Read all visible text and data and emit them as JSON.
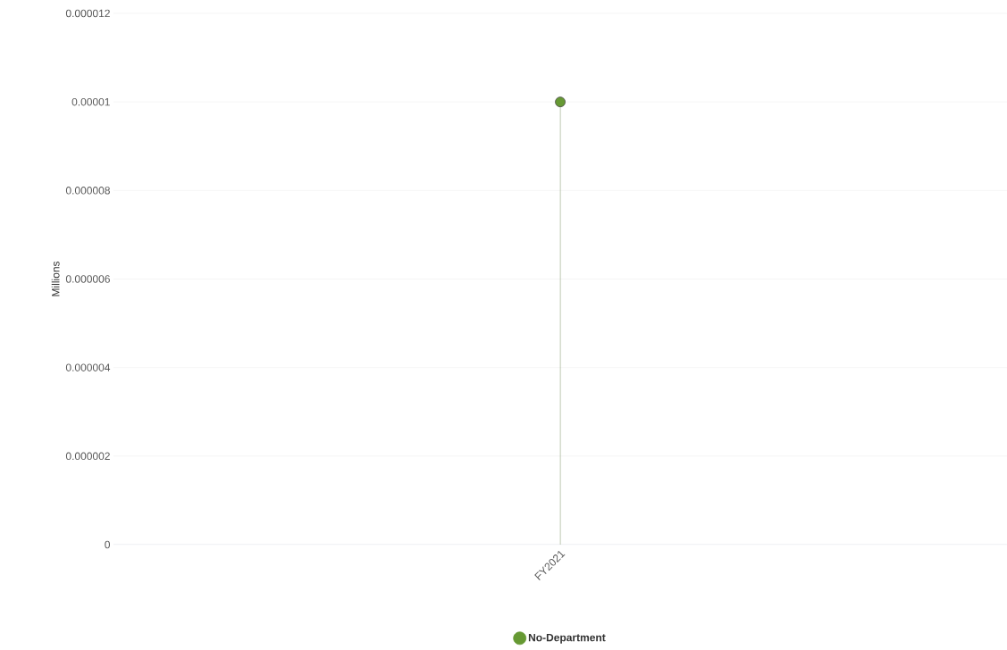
{
  "chart_data": {
    "type": "lollipop",
    "categories": [
      "FY2021"
    ],
    "series": [
      {
        "name": "No-Department",
        "color": "#669933",
        "values": [
          1e-05
        ]
      }
    ],
    "ylabel": "Millions",
    "ylim": [
      0,
      1.2e-05
    ],
    "yticks": [
      0,
      {
        "value": 2e-06,
        "label": "0.000002"
      },
      {
        "value": 4e-06,
        "label": "0.000004"
      },
      {
        "value": 6e-06,
        "label": "0.000006"
      },
      {
        "value": 8e-06,
        "label": "0.000008"
      },
      {
        "value": 1e-05,
        "label": "0.00001"
      },
      {
        "value": 1.2e-05,
        "label": "0.000012"
      }
    ],
    "grid": "y",
    "legend": "bottom",
    "marker": "circle"
  }
}
